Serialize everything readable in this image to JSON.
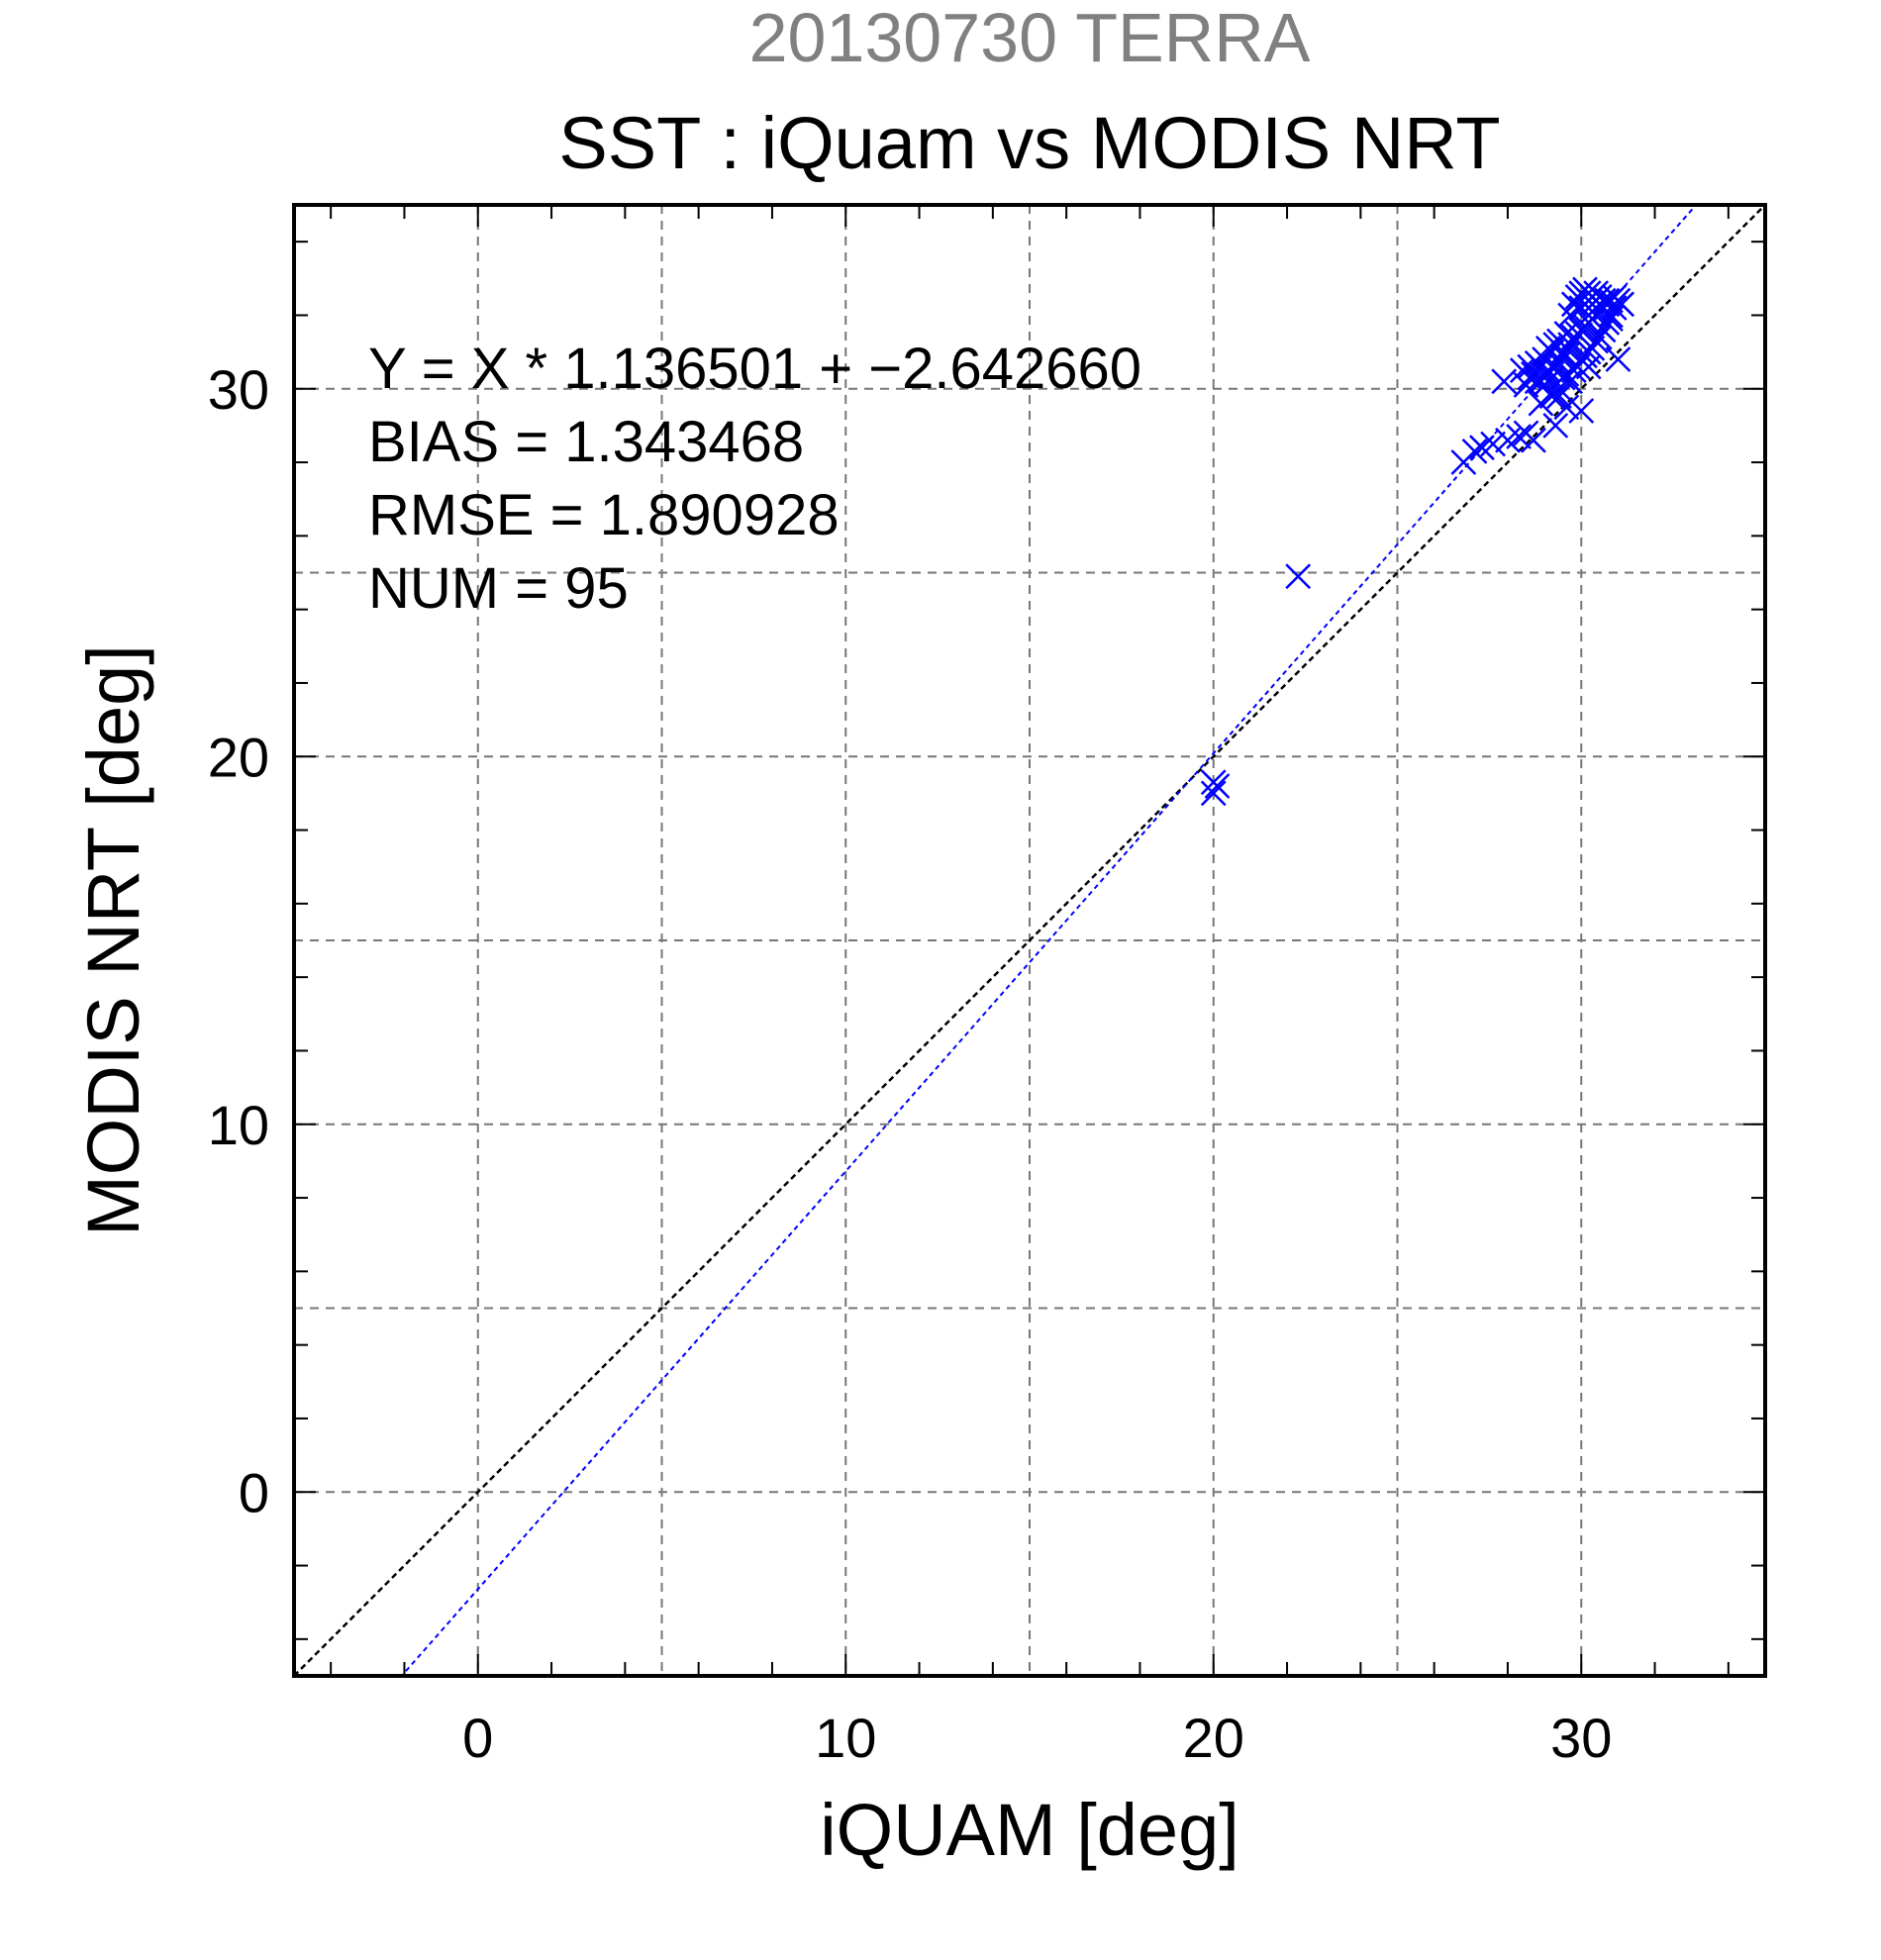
{
  "chart_data": {
    "type": "scatter",
    "title": "20130730 TERRA",
    "subtitle": "SST : iQuam vs MODIS NRT",
    "xlabel": "iQUAM [deg]",
    "ylabel": "MODIS NRT [deg]",
    "xlim": [
      -5,
      35
    ],
    "ylim": [
      -5,
      35
    ],
    "xticks": [
      0,
      10,
      20,
      30
    ],
    "yticks": [
      0,
      10,
      20,
      30
    ],
    "grid": true,
    "annotations": [
      "Y = X * 1.136501 + −2.642660",
      "BIAS = 1.343468",
      "RMSE = 1.890928",
      "NUM = 95"
    ],
    "fit_line": {
      "slope": 1.136501,
      "intercept": -2.64266
    },
    "identity_line": {
      "slope": 1,
      "intercept": 0
    },
    "colors": {
      "points": "#0000ff",
      "fit_line": "#0000ff",
      "identity_line": "#000000",
      "grid": "#777777",
      "title": "#808080",
      "text": "#000000"
    },
    "series": [
      {
        "x": [
          20.0,
          20.1,
          20.0,
          22.3,
          26.8,
          27.1,
          27.3,
          27.6,
          27.9,
          28.0,
          28.3,
          28.4,
          28.5,
          28.5,
          28.6,
          28.6,
          28.7,
          28.7,
          28.8,
          28.8,
          28.9,
          28.9,
          28.9,
          29.0,
          29.0,
          29.0,
          29.1,
          29.1,
          29.1,
          29.2,
          29.2,
          29.2,
          29.3,
          29.3,
          29.3,
          29.4,
          29.4,
          29.4,
          29.5,
          29.5,
          29.5,
          29.6,
          29.6,
          29.6,
          29.7,
          29.7,
          29.7,
          29.8,
          29.8,
          29.8,
          29.9,
          29.9,
          29.9,
          30.0,
          30.0,
          30.0,
          30.0,
          30.1,
          30.1,
          30.1,
          30.1,
          30.2,
          30.2,
          30.2,
          30.2,
          30.3,
          30.3,
          30.3,
          30.3,
          30.4,
          30.4,
          30.4,
          30.4,
          30.5,
          30.5,
          30.5,
          30.5,
          30.6,
          30.6,
          30.6,
          30.7,
          30.7,
          30.7,
          30.8,
          30.8,
          30.9,
          30.9,
          31.0,
          31.0,
          31.1,
          30.0,
          29.4,
          29.6,
          30.2,
          30.8
        ],
        "y": [
          19.0,
          19.2,
          19.3,
          24.9,
          28.0,
          28.3,
          28.4,
          28.5,
          30.2,
          28.6,
          28.7,
          30.5,
          30.1,
          28.8,
          30.3,
          30.6,
          28.6,
          30.4,
          30.2,
          30.7,
          29.6,
          30.2,
          30.6,
          30.1,
          30.4,
          30.8,
          30.2,
          30.5,
          31.1,
          29.8,
          30.3,
          31.0,
          29.0,
          30.6,
          31.2,
          30.0,
          30.7,
          31.3,
          30.3,
          30.9,
          31.0,
          30.4,
          31.1,
          31.5,
          30.2,
          31.2,
          32.0,
          30.5,
          31.4,
          32.3,
          30.6,
          31.5,
          32.5,
          30.8,
          31.6,
          32.2,
          32.6,
          30.9,
          31.7,
          32.3,
          32.7,
          31.0,
          31.8,
          32.4,
          32.6,
          31.1,
          31.9,
          32.1,
          32.5,
          31.3,
          32.0,
          32.4,
          32.6,
          31.4,
          32.1,
          32.3,
          32.5,
          31.6,
          32.2,
          32.4,
          31.8,
          32.3,
          32.4,
          32.0,
          32.4,
          32.2,
          32.5,
          30.8,
          32.4,
          32.3,
          29.4,
          29.8,
          29.5,
          30.6,
          31.9
        ]
      }
    ]
  }
}
